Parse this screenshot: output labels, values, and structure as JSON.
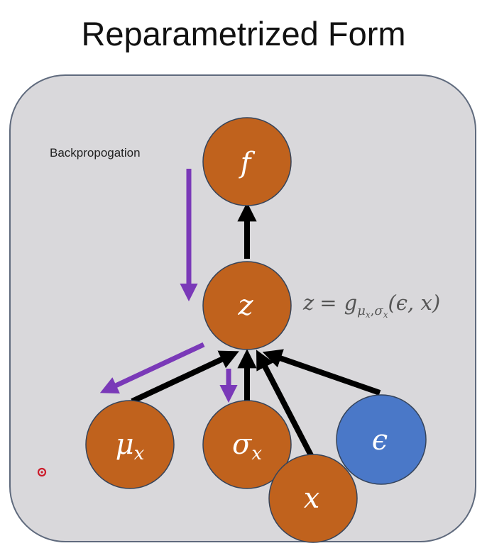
{
  "title": "Reparametrized Form",
  "annotation": "Backpropogation",
  "colors": {
    "panel": "#d9d8db",
    "panel_border": "#5f6a7d",
    "node_orange": "#c0621d",
    "node_blue": "#4a78c8",
    "node_border": "#36445a",
    "forward_arrow": "#000000",
    "backprop_arrow": "#7a39b8",
    "cursor_dot": "#cc1b2a"
  },
  "nodes": [
    {
      "id": "f",
      "label": "f",
      "color": "orange"
    },
    {
      "id": "z",
      "label": "z",
      "color": "orange"
    },
    {
      "id": "mu",
      "label": "μ",
      "sub": "x",
      "color": "orange"
    },
    {
      "id": "sigma",
      "label": "σ",
      "sub": "x",
      "color": "orange"
    },
    {
      "id": "x",
      "label": "x",
      "color": "orange"
    },
    {
      "id": "eps",
      "label": "ϵ",
      "color": "blue"
    }
  ],
  "formula": {
    "lhs": "z",
    "eq": "=",
    "fn": "g",
    "sub_mu": "μ",
    "sub_x1": "x",
    "comma": ",",
    "sub_sigma": "σ",
    "sub_x2": "x",
    "args": "(ϵ, x)"
  }
}
